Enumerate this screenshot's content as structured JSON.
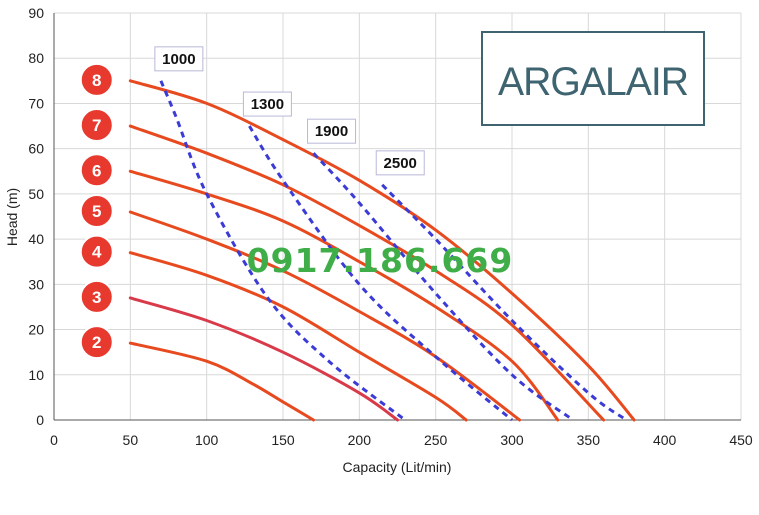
{
  "chart_data": {
    "type": "line",
    "xlabel": "Capacity (Lit/min)",
    "ylabel": "Head (m)",
    "xlim": [
      0,
      450
    ],
    "ylim": [
      0,
      90
    ],
    "xticks": [
      "0",
      "50",
      "100",
      "150",
      "200",
      "250",
      "300",
      "350",
      "400",
      "450"
    ],
    "yticks": [
      "0",
      "10",
      "20",
      "30",
      "40",
      "50",
      "60",
      "70",
      "80",
      "90"
    ],
    "grid": true,
    "series": [
      {
        "name": "2",
        "color": "#e84a1f",
        "points": [
          [
            50,
            17
          ],
          [
            100,
            13
          ],
          [
            130,
            8
          ],
          [
            150,
            4
          ],
          [
            170,
            0
          ]
        ]
      },
      {
        "name": "3",
        "color": "#d93a4a",
        "points": [
          [
            50,
            27
          ],
          [
            100,
            22
          ],
          [
            150,
            15
          ],
          [
            200,
            6
          ],
          [
            225,
            0
          ]
        ]
      },
      {
        "name": "4",
        "color": "#e84a1f",
        "points": [
          [
            50,
            37
          ],
          [
            100,
            32
          ],
          [
            150,
            25
          ],
          [
            200,
            15
          ],
          [
            250,
            5
          ],
          [
            270,
            0
          ]
        ]
      },
      {
        "name": "5",
        "color": "#e84a1f",
        "points": [
          [
            50,
            46
          ],
          [
            100,
            40
          ],
          [
            150,
            33
          ],
          [
            200,
            24
          ],
          [
            250,
            14
          ],
          [
            305,
            0
          ]
        ]
      },
      {
        "name": "6",
        "color": "#e84a1f",
        "points": [
          [
            50,
            55
          ],
          [
            100,
            50
          ],
          [
            150,
            44
          ],
          [
            200,
            35
          ],
          [
            250,
            25
          ],
          [
            300,
            13
          ],
          [
            330,
            0
          ]
        ]
      },
      {
        "name": "7",
        "color": "#e84a1f",
        "points": [
          [
            50,
            65
          ],
          [
            100,
            59
          ],
          [
            150,
            52
          ],
          [
            200,
            43
          ],
          [
            250,
            33
          ],
          [
            300,
            21
          ],
          [
            360,
            0
          ]
        ]
      },
      {
        "name": "8",
        "color": "#e84a1f",
        "points": [
          [
            50,
            75
          ],
          [
            100,
            70
          ],
          [
            150,
            62
          ],
          [
            200,
            53
          ],
          [
            250,
            42
          ],
          [
            300,
            28
          ],
          [
            350,
            12
          ],
          [
            380,
            0
          ]
        ]
      }
    ],
    "speed_curves": [
      {
        "label": "1000",
        "color": "#3b3bd6",
        "points": [
          [
            70,
            75
          ],
          [
            80,
            67
          ],
          [
            100,
            50
          ],
          [
            140,
            27
          ],
          [
            180,
            13
          ],
          [
            230,
            0
          ]
        ]
      },
      {
        "label": "1300",
        "color": "#3b3bd6",
        "points": [
          [
            128,
            65
          ],
          [
            150,
            53
          ],
          [
            200,
            30
          ],
          [
            250,
            14
          ],
          [
            300,
            0
          ]
        ]
      },
      {
        "label": "1900",
        "color": "#3b3bd6",
        "points": [
          [
            170,
            59
          ],
          [
            200,
            48
          ],
          [
            250,
            28
          ],
          [
            300,
            10
          ],
          [
            340,
            0
          ]
        ]
      },
      {
        "label": "2500",
        "color": "#3b3bd6",
        "points": [
          [
            215,
            52
          ],
          [
            250,
            40
          ],
          [
            300,
            22
          ],
          [
            350,
            6
          ],
          [
            375,
            0
          ]
        ]
      }
    ],
    "stage_badge_color": "#e8392e"
  },
  "watermark": "0917.186.669",
  "logo": {
    "text": "ARGALAIR",
    "color": "#3d6470"
  }
}
